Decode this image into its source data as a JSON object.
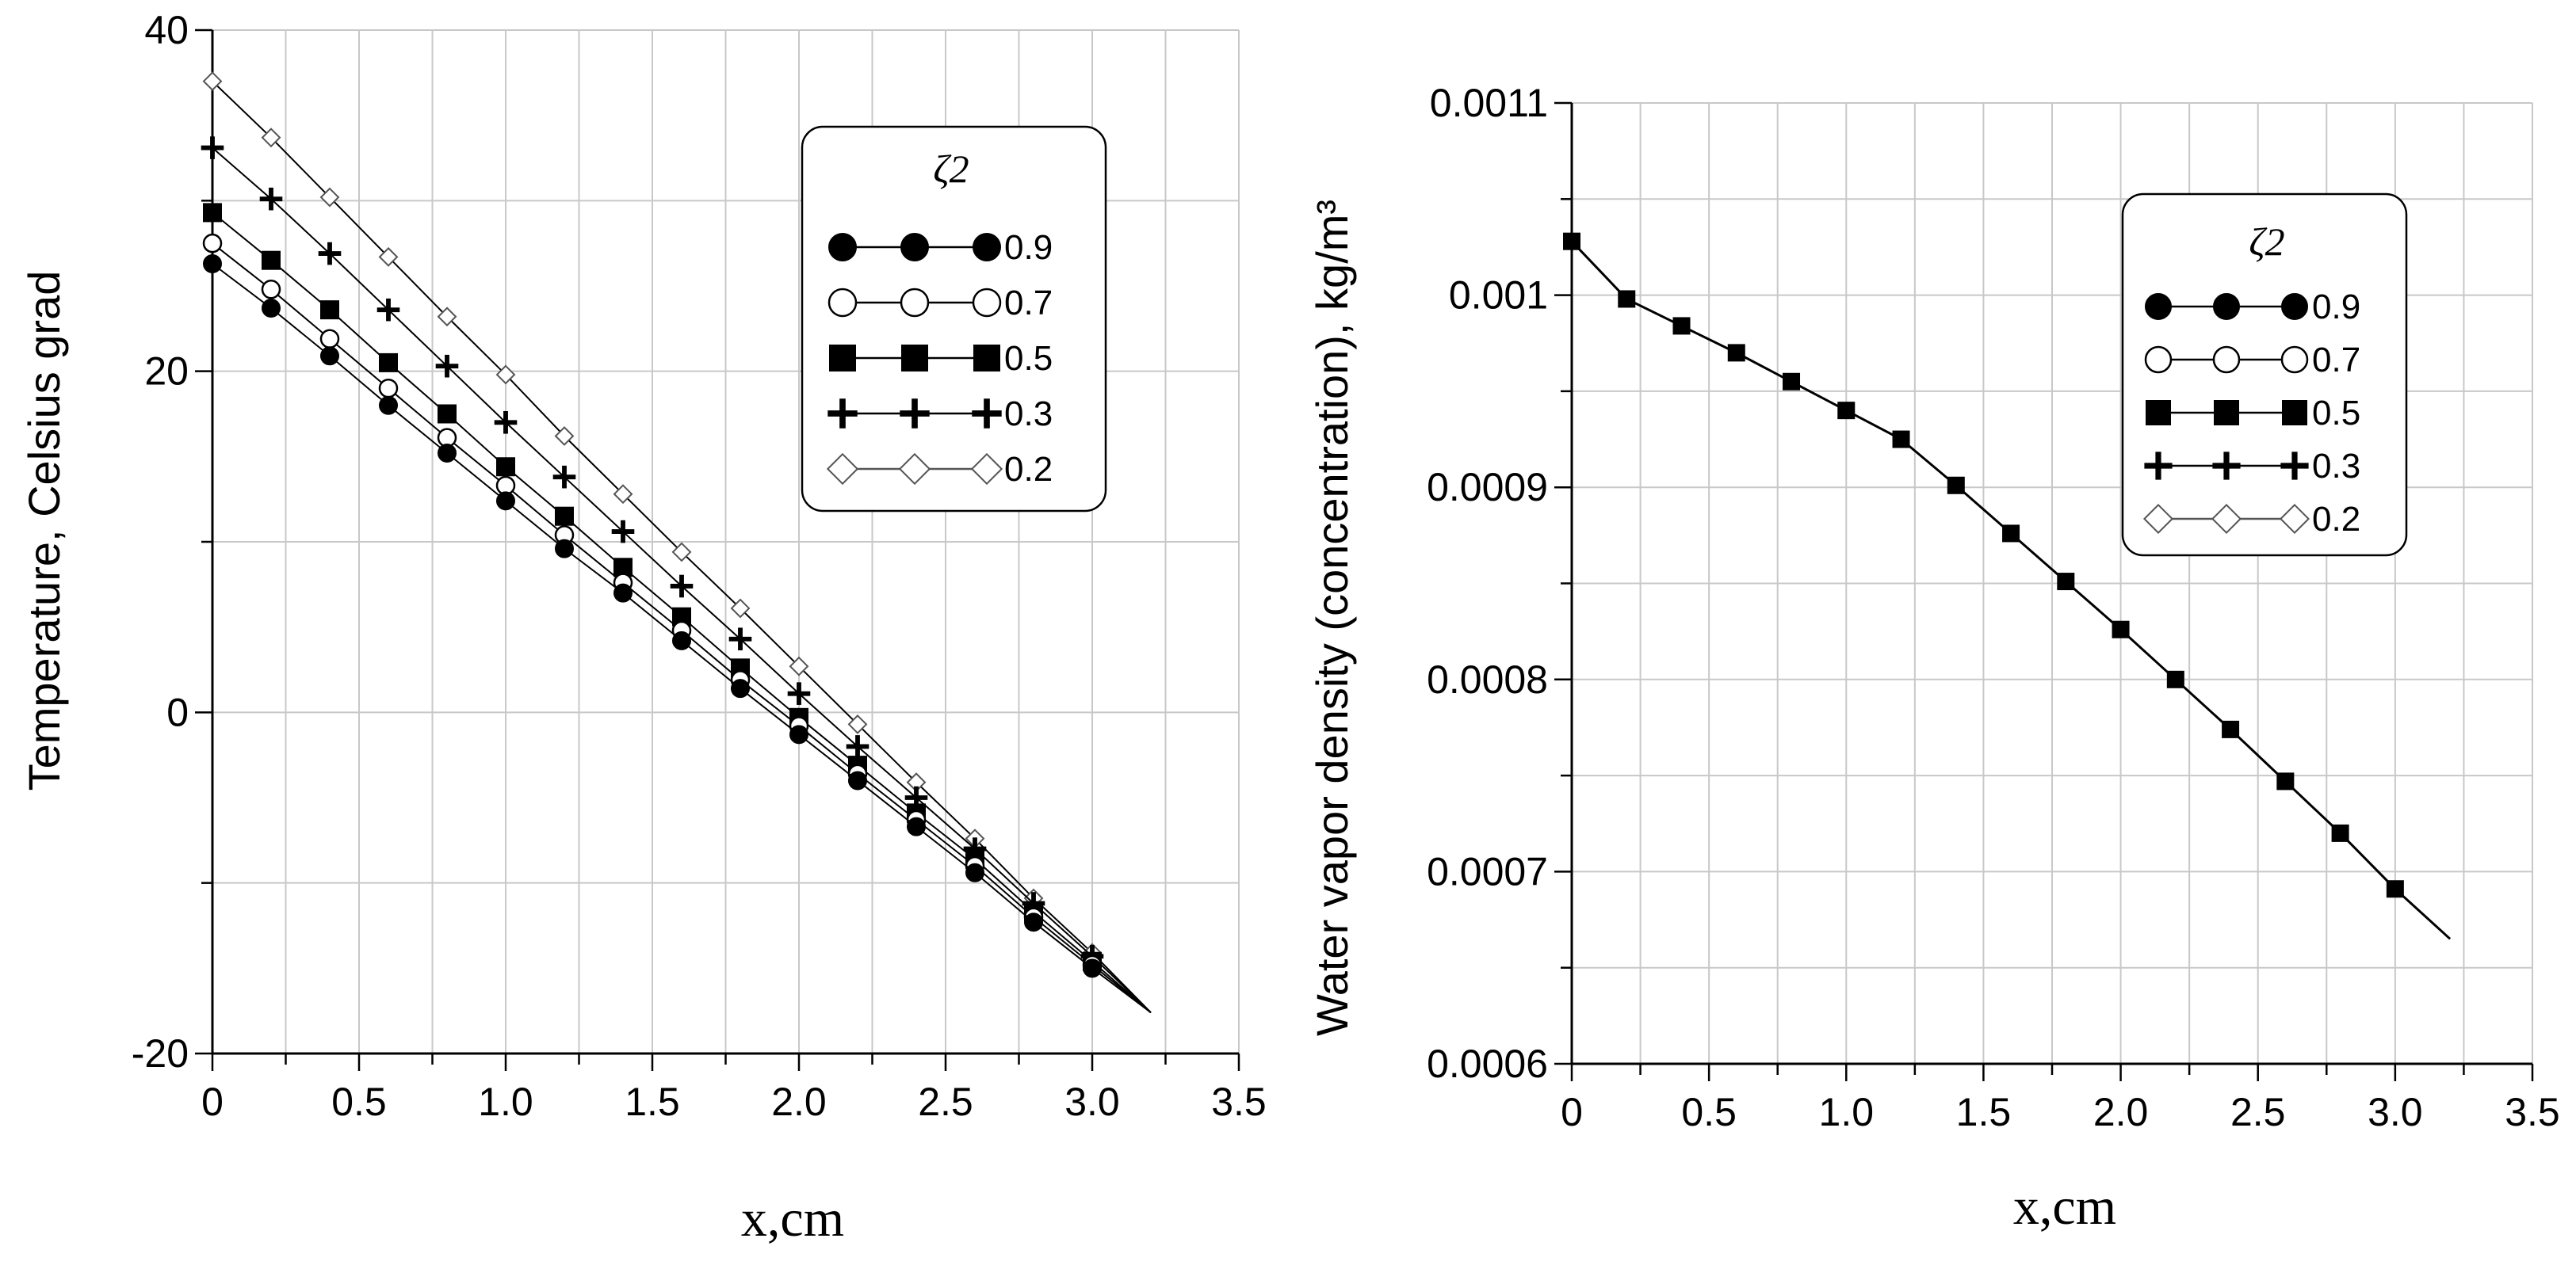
{
  "chart_data": [
    {
      "type": "line",
      "title": "",
      "xlabel": "x,cm",
      "ylabel": "Temperature,  Celsius grad",
      "xlim": [
        0,
        3.5
      ],
      "ylim": [
        -20,
        40
      ],
      "grid": true,
      "xticks": [
        "0",
        "0.5",
        "1.0",
        "1.5",
        "2.0",
        "2.5",
        "3.0",
        "3.5"
      ],
      "yticks": [
        "-20",
        "0",
        "20",
        "40"
      ],
      "legend": {
        "title": "ζ2",
        "position": "top-right"
      },
      "x": [
        0,
        0.2,
        0.4,
        0.6,
        0.8,
        1.0,
        1.2,
        1.4,
        1.6,
        1.8,
        2.0,
        2.2,
        2.4,
        2.6,
        2.8,
        3.0
      ],
      "line_end": {
        "x": 3.2,
        "y": -17.6
      },
      "series": [
        {
          "name": "0.9",
          "marker": "filled-circle",
          "values": [
            26.3,
            23.7,
            20.9,
            18.0,
            15.2,
            12.4,
            9.6,
            7.0,
            4.2,
            1.4,
            -1.3,
            -4.0,
            -6.7,
            -9.4,
            -12.3,
            -15.0
          ]
        },
        {
          "name": "0.7",
          "marker": "open-circle",
          "values": [
            27.5,
            24.8,
            21.9,
            19.0,
            16.1,
            13.3,
            10.4,
            7.6,
            4.8,
            1.9,
            -0.8,
            -3.6,
            -6.3,
            -9.0,
            -12.0,
            -14.8
          ]
        },
        {
          "name": "0.5",
          "marker": "filled-square",
          "values": [
            29.3,
            26.5,
            23.6,
            20.5,
            17.5,
            14.4,
            11.5,
            8.5,
            5.6,
            2.6,
            -0.3,
            -3.1,
            -5.9,
            -8.6,
            -11.7,
            -14.6
          ]
        },
        {
          "name": "0.3",
          "marker": "plus",
          "values": [
            33.1,
            30.1,
            26.9,
            23.6,
            20.3,
            17.0,
            13.8,
            10.6,
            7.4,
            4.3,
            1.1,
            -2.0,
            -5.0,
            -8.0,
            -11.2,
            -14.3
          ]
        },
        {
          "name": "0.2",
          "marker": "open-diamond",
          "values": [
            37.0,
            33.7,
            30.2,
            26.7,
            23.2,
            19.8,
            16.2,
            12.8,
            9.4,
            6.1,
            2.7,
            -0.7,
            -4.1,
            -7.4,
            -10.9,
            -14.1
          ]
        }
      ]
    },
    {
      "type": "line",
      "title": "",
      "xlabel": "x,cm",
      "ylabel": "Water vapor density (concentration),  kg/m³",
      "xlim": [
        0,
        3.5
      ],
      "ylim": [
        0.0006,
        0.0011
      ],
      "grid": true,
      "xticks": [
        "0",
        "0.5",
        "1.0",
        "1.5",
        "2.0",
        "2.5",
        "3.0",
        "3.5"
      ],
      "yticks": [
        "0.0006",
        "0.0007",
        "0.0008",
        "0.0009",
        "0.001",
        "0.0011"
      ],
      "legend": {
        "title": "ζ2",
        "position": "top-right"
      },
      "x": [
        0,
        0.2,
        0.4,
        0.6,
        0.8,
        1.0,
        1.2,
        1.4,
        1.6,
        1.8,
        2.0,
        2.2,
        2.4,
        2.6,
        2.8,
        3.0
      ],
      "line_end": {
        "x": 3.2,
        "y": 0.000665
      },
      "visible_marker": "filled-square",
      "series": [
        {
          "name": "0.9",
          "marker": "filled-circle",
          "values": [
            0.001028,
            0.000998,
            0.000984,
            0.00097,
            0.000955,
            0.00094,
            0.000925,
            0.000901,
            0.000876,
            0.000851,
            0.000826,
            0.0008,
            0.000774,
            0.000747,
            0.00072,
            0.000691
          ]
        },
        {
          "name": "0.7",
          "marker": "open-circle",
          "values": [
            0.001028,
            0.000998,
            0.000984,
            0.00097,
            0.000955,
            0.00094,
            0.000925,
            0.000901,
            0.000876,
            0.000851,
            0.000826,
            0.0008,
            0.000774,
            0.000747,
            0.00072,
            0.000691
          ]
        },
        {
          "name": "0.5",
          "marker": "filled-square",
          "values": [
            0.001028,
            0.000998,
            0.000984,
            0.00097,
            0.000955,
            0.00094,
            0.000925,
            0.000901,
            0.000876,
            0.000851,
            0.000826,
            0.0008,
            0.000774,
            0.000747,
            0.00072,
            0.000691
          ]
        },
        {
          "name": "0.3",
          "marker": "plus",
          "values": [
            0.001028,
            0.000998,
            0.000984,
            0.00097,
            0.000955,
            0.00094,
            0.000925,
            0.000901,
            0.000876,
            0.000851,
            0.000826,
            0.0008,
            0.000774,
            0.000747,
            0.00072,
            0.000691
          ]
        },
        {
          "name": "0.2",
          "marker": "open-diamond",
          "values": [
            0.001028,
            0.000998,
            0.000984,
            0.00097,
            0.000955,
            0.00094,
            0.000925,
            0.000901,
            0.000876,
            0.000851,
            0.000826,
            0.0008,
            0.000774,
            0.000747,
            0.00072,
            0.000691
          ]
        }
      ]
    }
  ]
}
